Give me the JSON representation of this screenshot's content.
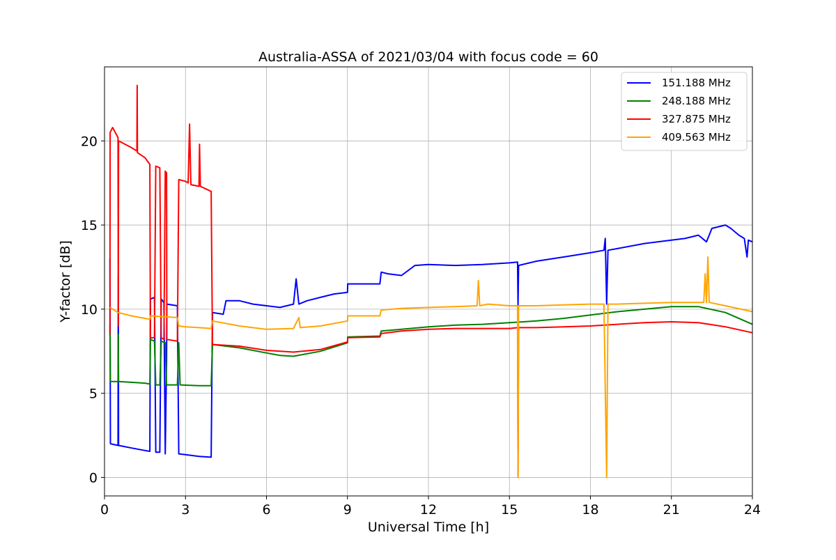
{
  "chart_data": {
    "type": "line",
    "title": "Australia-ASSA of 2021/03/04 with focus code = 60",
    "xlabel": "Universal Time [h]",
    "ylabel": "Y-factor [dB]",
    "xlim": [
      0,
      24
    ],
    "ylim": [
      -1.1,
      24.4
    ],
    "xticks": [
      0,
      3,
      6,
      9,
      12,
      15,
      18,
      21,
      24
    ],
    "yticks": [
      0,
      5,
      10,
      15,
      20
    ],
    "grid": true,
    "legend_position": "top-right",
    "series": [
      {
        "name": "151.188 MHz",
        "color": "#0000ff",
        "points": [
          [
            0.2,
            13.0
          ],
          [
            0.22,
            2.0
          ],
          [
            0.5,
            1.9
          ],
          [
            0.51,
            12.0
          ],
          [
            0.52,
            1.9
          ],
          [
            1.0,
            1.75
          ],
          [
            1.5,
            1.6
          ],
          [
            1.68,
            1.55
          ],
          [
            1.7,
            10.6
          ],
          [
            1.85,
            10.7
          ],
          [
            1.9,
            1.5
          ],
          [
            2.05,
            1.5
          ],
          [
            2.1,
            10.6
          ],
          [
            2.2,
            10.4
          ],
          [
            2.25,
            1.4
          ],
          [
            2.3,
            7.0
          ],
          [
            2.31,
            10.3
          ],
          [
            2.7,
            10.2
          ],
          [
            2.75,
            1.4
          ],
          [
            3.0,
            1.35
          ],
          [
            3.5,
            1.25
          ],
          [
            3.95,
            1.2
          ],
          [
            4.0,
            9.8
          ],
          [
            4.4,
            9.7
          ],
          [
            4.5,
            10.5
          ],
          [
            5.0,
            10.5
          ],
          [
            5.5,
            10.3
          ],
          [
            6.0,
            10.2
          ],
          [
            6.5,
            10.1
          ],
          [
            7.0,
            10.3
          ],
          [
            7.1,
            11.8
          ],
          [
            7.2,
            10.3
          ],
          [
            7.5,
            10.5
          ],
          [
            8.0,
            10.7
          ],
          [
            8.5,
            10.9
          ],
          [
            9.0,
            11.0
          ],
          [
            9.01,
            11.5
          ],
          [
            10.2,
            11.5
          ],
          [
            10.25,
            12.2
          ],
          [
            10.5,
            12.1
          ],
          [
            11.0,
            12.0
          ],
          [
            11.5,
            12.6
          ],
          [
            12.0,
            12.65
          ],
          [
            13.0,
            12.6
          ],
          [
            14.0,
            12.65
          ],
          [
            15.0,
            12.75
          ],
          [
            15.3,
            12.8
          ],
          [
            15.32,
            10.2
          ],
          [
            15.34,
            12.6
          ],
          [
            16.0,
            12.85
          ],
          [
            17.0,
            13.1
          ],
          [
            18.0,
            13.35
          ],
          [
            18.5,
            13.5
          ],
          [
            18.55,
            14.2
          ],
          [
            18.6,
            10.3
          ],
          [
            18.65,
            13.5
          ],
          [
            19.0,
            13.6
          ],
          [
            20.0,
            13.9
          ],
          [
            21.0,
            14.1
          ],
          [
            21.5,
            14.2
          ],
          [
            22.0,
            14.4
          ],
          [
            22.3,
            14.0
          ],
          [
            22.5,
            14.8
          ],
          [
            23.0,
            15.0
          ],
          [
            23.2,
            14.8
          ],
          [
            23.5,
            14.4
          ],
          [
            23.7,
            14.2
          ],
          [
            23.8,
            13.1
          ],
          [
            23.85,
            14.1
          ],
          [
            24.0,
            14.0
          ]
        ]
      },
      {
        "name": "248.188 MHz",
        "color": "#008000",
        "points": [
          [
            0.2,
            9.0
          ],
          [
            0.22,
            5.7
          ],
          [
            0.5,
            5.7
          ],
          [
            0.51,
            8.5
          ],
          [
            0.52,
            5.7
          ],
          [
            1.0,
            5.65
          ],
          [
            1.5,
            5.6
          ],
          [
            1.68,
            5.55
          ],
          [
            1.7,
            8.2
          ],
          [
            1.85,
            8.1
          ],
          [
            1.9,
            5.5
          ],
          [
            2.05,
            5.5
          ],
          [
            2.1,
            8.1
          ],
          [
            2.25,
            8.0
          ],
          [
            2.3,
            5.5
          ],
          [
            2.7,
            5.5
          ],
          [
            2.75,
            8.0
          ],
          [
            2.8,
            5.5
          ],
          [
            3.5,
            5.45
          ],
          [
            3.95,
            5.45
          ],
          [
            4.0,
            7.9
          ],
          [
            5.0,
            7.7
          ],
          [
            6.0,
            7.4
          ],
          [
            6.5,
            7.25
          ],
          [
            7.0,
            7.2
          ],
          [
            8.0,
            7.5
          ],
          [
            9.0,
            8.0
          ],
          [
            9.01,
            8.35
          ],
          [
            10.2,
            8.4
          ],
          [
            10.25,
            8.7
          ],
          [
            11.0,
            8.8
          ],
          [
            12.0,
            8.95
          ],
          [
            13.0,
            9.05
          ],
          [
            14.0,
            9.1
          ],
          [
            15.0,
            9.2
          ],
          [
            16.0,
            9.3
          ],
          [
            17.0,
            9.45
          ],
          [
            18.0,
            9.65
          ],
          [
            19.0,
            9.85
          ],
          [
            20.0,
            10.0
          ],
          [
            21.0,
            10.15
          ],
          [
            22.0,
            10.15
          ],
          [
            23.0,
            9.8
          ],
          [
            24.0,
            9.1
          ]
        ]
      },
      {
        "name": "327.875 MHz",
        "color": "#ff0000",
        "points": [
          [
            0.2,
            8.5
          ],
          [
            0.21,
            20.5
          ],
          [
            0.3,
            20.8
          ],
          [
            0.5,
            20.2
          ],
          [
            0.51,
            9.0
          ],
          [
            0.52,
            20.0
          ],
          [
            1.0,
            19.6
          ],
          [
            1.2,
            19.4
          ],
          [
            1.21,
            23.3
          ],
          [
            1.22,
            19.3
          ],
          [
            1.5,
            19.0
          ],
          [
            1.68,
            18.6
          ],
          [
            1.7,
            8.3
          ],
          [
            1.85,
            8.3
          ],
          [
            1.9,
            18.5
          ],
          [
            2.05,
            18.4
          ],
          [
            2.1,
            8.3
          ],
          [
            2.2,
            8.2
          ],
          [
            2.25,
            18.2
          ],
          [
            2.3,
            18.1
          ],
          [
            2.31,
            8.2
          ],
          [
            2.7,
            8.1
          ],
          [
            2.75,
            17.7
          ],
          [
            3.0,
            17.6
          ],
          [
            3.1,
            17.5
          ],
          [
            3.15,
            21.0
          ],
          [
            3.2,
            17.4
          ],
          [
            3.5,
            17.3
          ],
          [
            3.52,
            19.8
          ],
          [
            3.55,
            17.3
          ],
          [
            3.95,
            17.0
          ],
          [
            4.0,
            7.9
          ],
          [
            5.0,
            7.8
          ],
          [
            6.0,
            7.55
          ],
          [
            7.0,
            7.45
          ],
          [
            8.0,
            7.6
          ],
          [
            9.0,
            8.05
          ],
          [
            9.01,
            8.3
          ],
          [
            10.2,
            8.35
          ],
          [
            10.25,
            8.55
          ],
          [
            11.0,
            8.7
          ],
          [
            12.0,
            8.8
          ],
          [
            13.0,
            8.85
          ],
          [
            14.0,
            8.85
          ],
          [
            15.0,
            8.85
          ],
          [
            15.3,
            8.9
          ],
          [
            15.32,
            0.0
          ],
          [
            15.34,
            8.9
          ],
          [
            16.0,
            8.9
          ],
          [
            17.0,
            8.95
          ],
          [
            18.0,
            9.0
          ],
          [
            19.0,
            9.1
          ],
          [
            20.0,
            9.2
          ],
          [
            21.0,
            9.25
          ],
          [
            22.0,
            9.2
          ],
          [
            23.0,
            8.95
          ],
          [
            24.0,
            8.6
          ]
        ]
      },
      {
        "name": "409.563 MHz",
        "color": "#ffa500",
        "points": [
          [
            0.2,
            10.1
          ],
          [
            0.5,
            9.8
          ],
          [
            1.0,
            9.6
          ],
          [
            1.5,
            9.45
          ],
          [
            1.68,
            9.4
          ],
          [
            1.7,
            9.6
          ],
          [
            2.2,
            9.55
          ],
          [
            2.7,
            9.5
          ],
          [
            2.75,
            9.0
          ],
          [
            3.0,
            8.95
          ],
          [
            3.5,
            8.9
          ],
          [
            3.95,
            8.85
          ],
          [
            4.0,
            9.3
          ],
          [
            5.0,
            9.0
          ],
          [
            6.0,
            8.8
          ],
          [
            7.0,
            8.85
          ],
          [
            7.2,
            9.5
          ],
          [
            7.25,
            8.9
          ],
          [
            8.0,
            9.0
          ],
          [
            9.0,
            9.3
          ],
          [
            9.01,
            9.6
          ],
          [
            10.2,
            9.6
          ],
          [
            10.25,
            9.95
          ],
          [
            11.0,
            10.05
          ],
          [
            12.0,
            10.1
          ],
          [
            13.0,
            10.15
          ],
          [
            13.8,
            10.2
          ],
          [
            13.85,
            11.7
          ],
          [
            13.9,
            10.2
          ],
          [
            14.2,
            10.3
          ],
          [
            15.0,
            10.2
          ],
          [
            15.3,
            10.2
          ],
          [
            15.32,
            0.0
          ],
          [
            15.34,
            10.2
          ],
          [
            16.0,
            10.2
          ],
          [
            17.0,
            10.25
          ],
          [
            18.0,
            10.3
          ],
          [
            18.5,
            10.3
          ],
          [
            18.6,
            0.0
          ],
          [
            18.65,
            10.3
          ],
          [
            19.0,
            10.3
          ],
          [
            20.0,
            10.35
          ],
          [
            21.0,
            10.4
          ],
          [
            22.0,
            10.4
          ],
          [
            22.2,
            10.4
          ],
          [
            22.25,
            12.1
          ],
          [
            22.3,
            10.4
          ],
          [
            22.35,
            13.1
          ],
          [
            22.4,
            10.4
          ],
          [
            23.0,
            10.2
          ],
          [
            24.0,
            9.85
          ]
        ]
      }
    ]
  }
}
